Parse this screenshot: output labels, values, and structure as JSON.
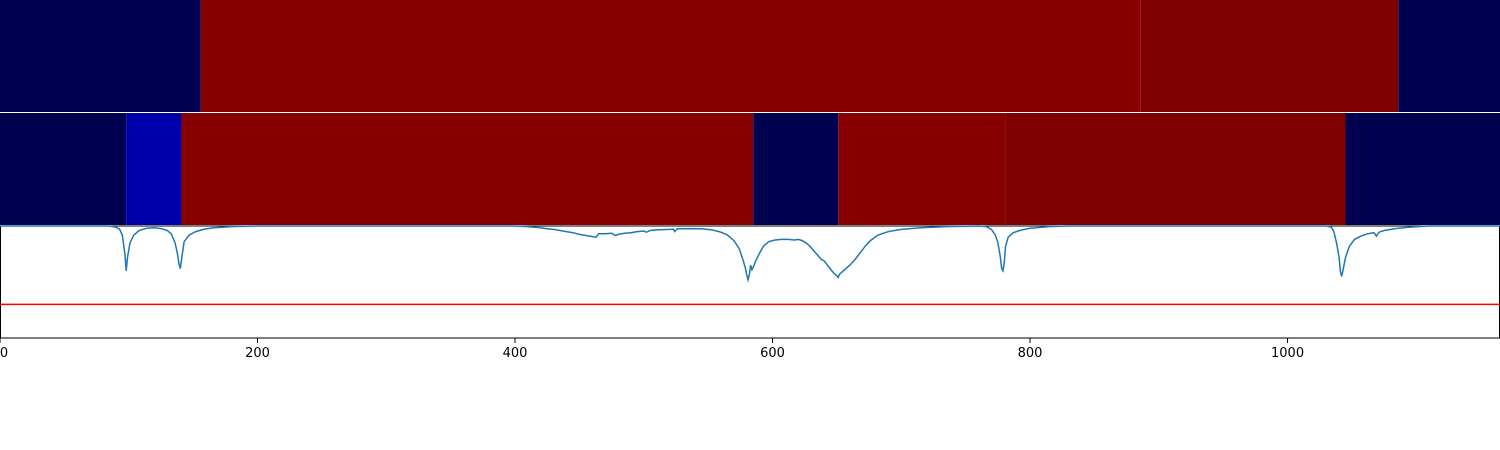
{
  "chart_data": {
    "type": "heatmap",
    "x_range": [
      0,
      1165
    ],
    "x_ticks": [
      {
        "value": 0,
        "label": "0"
      },
      {
        "value": 200,
        "label": "200"
      },
      {
        "value": 400,
        "label": "400"
      },
      {
        "value": 600,
        "label": "600"
      },
      {
        "value": 800,
        "label": "800"
      },
      {
        "value": 1000,
        "label": "1000"
      }
    ],
    "tracks": [
      {
        "id": "track-1",
        "segments": [
          {
            "start": 0,
            "end": 156,
            "color": "#000050"
          },
          {
            "start": 156,
            "end": 886,
            "color": "#880000"
          },
          {
            "start": 886,
            "end": 1086,
            "color": "#7e0000"
          },
          {
            "start": 1086,
            "end": 1165,
            "color": "#000050"
          }
        ]
      },
      {
        "id": "track-2",
        "segments": [
          {
            "start": 0,
            "end": 98,
            "color": "#000050"
          },
          {
            "start": 98,
            "end": 141,
            "color": "#0000aa"
          },
          {
            "start": 141,
            "end": 585,
            "color": "#880000"
          },
          {
            "start": 585,
            "end": 651,
            "color": "#000050"
          },
          {
            "start": 651,
            "end": 781,
            "color": "#880000"
          },
          {
            "start": 781,
            "end": 1045,
            "color": "#7e0000"
          },
          {
            "start": 1045,
            "end": 1165,
            "color": "#000050"
          }
        ]
      }
    ],
    "line_series": {
      "color": "#1f77b4",
      "y_range": [
        0,
        1
      ],
      "points": [
        [
          0,
          1
        ],
        [
          85,
          1
        ],
        [
          90,
          0.99
        ],
        [
          93,
          0.97
        ],
        [
          95,
          0.92
        ],
        [
          97,
          0.75
        ],
        [
          98,
          0.6
        ],
        [
          99,
          0.72
        ],
        [
          101,
          0.85
        ],
        [
          104,
          0.92
        ],
        [
          108,
          0.96
        ],
        [
          114,
          0.98
        ],
        [
          120,
          0.985
        ],
        [
          126,
          0.975
        ],
        [
          130,
          0.96
        ],
        [
          133,
          0.93
        ],
        [
          136,
          0.85
        ],
        [
          138,
          0.74
        ],
        [
          139,
          0.66
        ],
        [
          140,
          0.62
        ],
        [
          141,
          0.7
        ],
        [
          143,
          0.86
        ],
        [
          147,
          0.92
        ],
        [
          152,
          0.95
        ],
        [
          158,
          0.97
        ],
        [
          166,
          0.985
        ],
        [
          180,
          0.995
        ],
        [
          200,
          1
        ],
        [
          400,
          1
        ],
        [
          410,
          0.995
        ],
        [
          420,
          0.985
        ],
        [
          425,
          0.975
        ],
        [
          430,
          0.97
        ],
        [
          435,
          0.96
        ],
        [
          440,
          0.95
        ],
        [
          445,
          0.94
        ],
        [
          450,
          0.925
        ],
        [
          455,
          0.915
        ],
        [
          460,
          0.905
        ],
        [
          463,
          0.9
        ],
        [
          465,
          0.93
        ],
        [
          470,
          0.93
        ],
        [
          475,
          0.935
        ],
        [
          478,
          0.915
        ],
        [
          480,
          0.925
        ],
        [
          485,
          0.935
        ],
        [
          490,
          0.94
        ],
        [
          495,
          0.95
        ],
        [
          500,
          0.955
        ],
        [
          502,
          0.945
        ],
        [
          505,
          0.96
        ],
        [
          510,
          0.965
        ],
        [
          515,
          0.968
        ],
        [
          520,
          0.97
        ],
        [
          523,
          0.972
        ],
        [
          524,
          0.95
        ],
        [
          526,
          0.975
        ],
        [
          535,
          0.977
        ],
        [
          545,
          0.975
        ],
        [
          553,
          0.965
        ],
        [
          560,
          0.945
        ],
        [
          565,
          0.92
        ],
        [
          570,
          0.87
        ],
        [
          574,
          0.8
        ],
        [
          577,
          0.7
        ],
        [
          579,
          0.62
        ],
        [
          580,
          0.56
        ],
        [
          581,
          0.52
        ],
        [
          582,
          0.57
        ],
        [
          583,
          0.65
        ],
        [
          584,
          0.61
        ],
        [
          585,
          0.63
        ],
        [
          587,
          0.69
        ],
        [
          590,
          0.76
        ],
        [
          593,
          0.82
        ],
        [
          597,
          0.86
        ],
        [
          602,
          0.875
        ],
        [
          607,
          0.88
        ],
        [
          612,
          0.88
        ],
        [
          617,
          0.875
        ],
        [
          620,
          0.88
        ],
        [
          623,
          0.87
        ],
        [
          626,
          0.85
        ],
        [
          629,
          0.82
        ],
        [
          632,
          0.78
        ],
        [
          635,
          0.74
        ],
        [
          638,
          0.7
        ],
        [
          640,
          0.69
        ],
        [
          642,
          0.66
        ],
        [
          644,
          0.63
        ],
        [
          646,
          0.6
        ],
        [
          648,
          0.575
        ],
        [
          650,
          0.555
        ],
        [
          651,
          0.54
        ],
        [
          652,
          0.57
        ],
        [
          654,
          0.59
        ],
        [
          656,
          0.61
        ],
        [
          660,
          0.65
        ],
        [
          664,
          0.7
        ],
        [
          668,
          0.76
        ],
        [
          672,
          0.82
        ],
        [
          676,
          0.87
        ],
        [
          682,
          0.92
        ],
        [
          690,
          0.95
        ],
        [
          700,
          0.97
        ],
        [
          715,
          0.985
        ],
        [
          735,
          0.995
        ],
        [
          760,
          1
        ],
        [
          766,
          0.995
        ],
        [
          770,
          0.97
        ],
        [
          773,
          0.92
        ],
        [
          775,
          0.85
        ],
        [
          777,
          0.72
        ],
        [
          778,
          0.62
        ],
        [
          779,
          0.6
        ],
        [
          780,
          0.68
        ],
        [
          781,
          0.82
        ],
        [
          783,
          0.9
        ],
        [
          787,
          0.94
        ],
        [
          792,
          0.96
        ],
        [
          800,
          0.98
        ],
        [
          815,
          0.995
        ],
        [
          830,
          1
        ],
        [
          1030,
          1
        ],
        [
          1034,
          0.99
        ],
        [
          1036,
          0.95
        ],
        [
          1038,
          0.85
        ],
        [
          1040,
          0.72
        ],
        [
          1041,
          0.6
        ],
        [
          1042,
          0.55
        ],
        [
          1043,
          0.6
        ],
        [
          1045,
          0.72
        ],
        [
          1048,
          0.82
        ],
        [
          1052,
          0.88
        ],
        [
          1057,
          0.91
        ],
        [
          1062,
          0.93
        ],
        [
          1067,
          0.94
        ],
        [
          1069,
          0.91
        ],
        [
          1071,
          0.945
        ],
        [
          1075,
          0.96
        ],
        [
          1080,
          0.97
        ],
        [
          1086,
          0.98
        ],
        [
          1095,
          0.99
        ],
        [
          1110,
          1
        ],
        [
          1165,
          1
        ]
      ]
    },
    "threshold": {
      "value": 0.3,
      "color": "#ff0000"
    }
  }
}
